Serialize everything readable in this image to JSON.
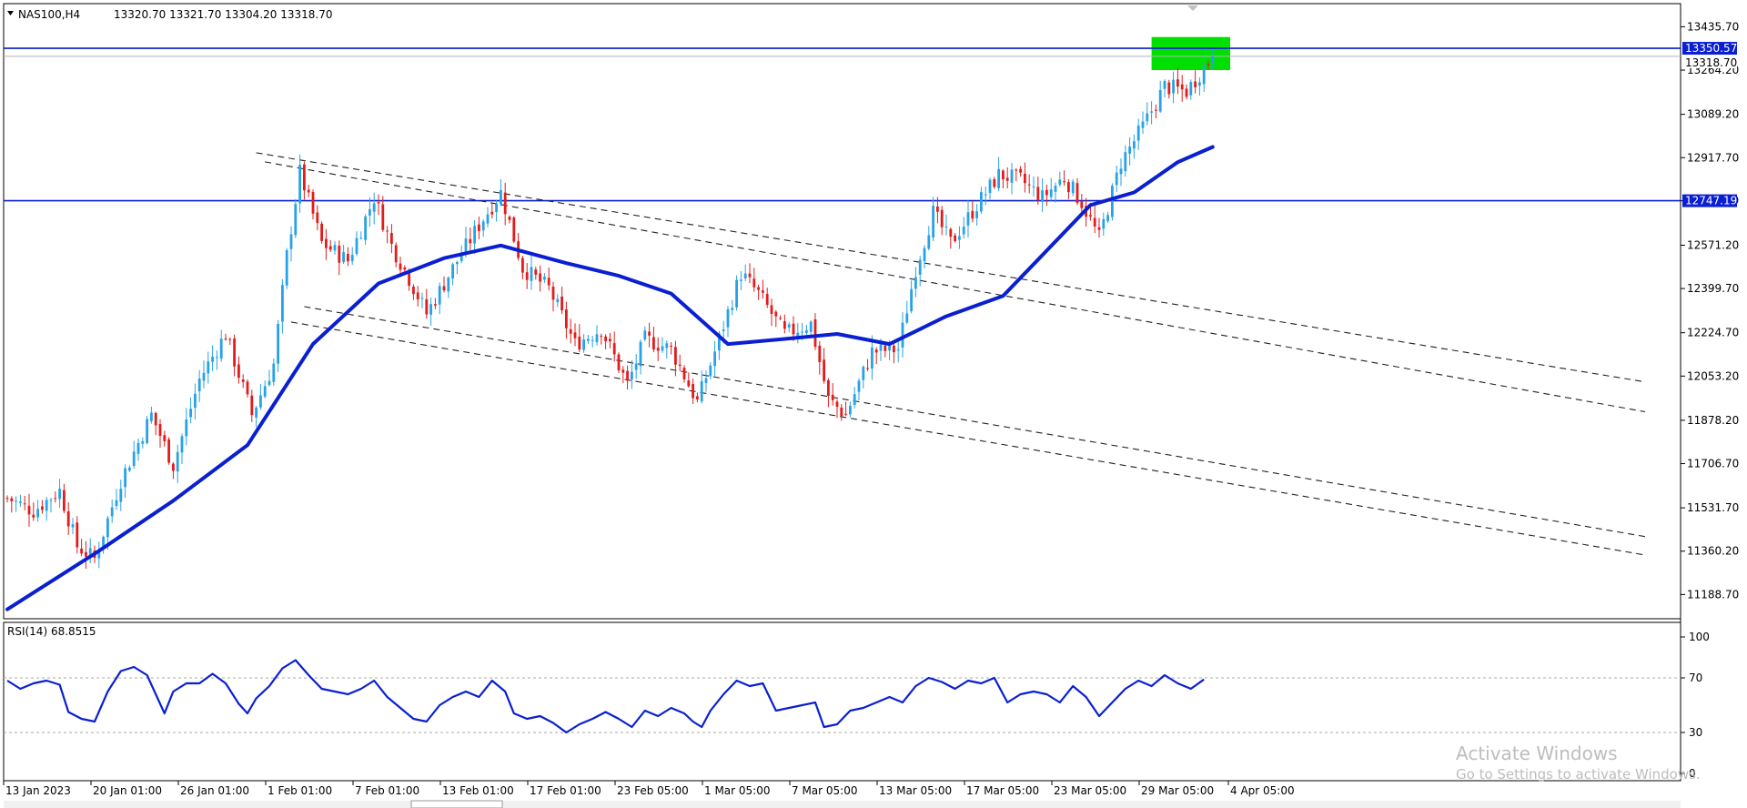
{
  "window": {
    "symbol_label": "NAS100,H4",
    "ohlc": "13320.70 13321.70 13304.20 13318.70",
    "watermark_title": "Activate Windows",
    "watermark_sub": "Go to Settings to activate Windows."
  },
  "colors": {
    "bull": "#27a2e6",
    "bear": "#e31b1b",
    "ma": "#0a1fd1",
    "hline": "#0a1fd1",
    "zone": "#00e000",
    "grid": "#c8c8c8",
    "frame": "#000000"
  },
  "chart_data": [
    {
      "type": "candlestick",
      "title": "NAS100,H4",
      "ylim": [
        11100,
        13520
      ],
      "y_ticks": [
        13435.7,
        13264.2,
        13089.2,
        12917.7,
        12747.19,
        12571.2,
        12399.7,
        12224.7,
        12053.2,
        11878.2,
        11706.7,
        11531.7,
        11360.2,
        11188.7
      ],
      "y_tick_labels": [
        "13435.70",
        "13264.20",
        "13089.20",
        "12917.70",
        "12747.19",
        "12571.20",
        "12399.70",
        "12224.70",
        "12053.20",
        "11878.20",
        "11706.70",
        "11531.70",
        "11360.20",
        "11188.70"
      ],
      "x_tick_labels": [
        "13 Jan 2023",
        "20 Jan 01:00",
        "26 Jan 01:00",
        "1 Feb 01:00",
        "7 Feb 01:00",
        "13 Feb 01:00",
        "17 Feb 01:00",
        "23 Feb 05:00",
        "1 Mar 05:00",
        "7 Mar 05:00",
        "13 Mar 05:00",
        "17 Mar 05:00",
        "23 Mar 05:00",
        "29 Mar 05:00",
        "4 Apr 05:00"
      ],
      "horizontal_levels": [
        {
          "value": 13350.57,
          "label": "13350.57"
        },
        {
          "value": 12747.19,
          "label": "12747.19"
        }
      ],
      "current_price": {
        "value": 13318.7,
        "label": "13318.70"
      },
      "resistance_zone": {
        "from": 13264.2,
        "to": 13395.0
      },
      "anchors": [
        {
          "x": 0,
          "v": 11570
        },
        {
          "x": 6,
          "v": 11520
        },
        {
          "x": 12,
          "v": 11600
        },
        {
          "x": 16,
          "v": 11380
        },
        {
          "x": 20,
          "v": 11330
        },
        {
          "x": 26,
          "v": 11640
        },
        {
          "x": 33,
          "v": 11900
        },
        {
          "x": 38,
          "v": 11700
        },
        {
          "x": 44,
          "v": 12040
        },
        {
          "x": 50,
          "v": 12220
        },
        {
          "x": 56,
          "v": 11900
        },
        {
          "x": 61,
          "v": 12100
        },
        {
          "x": 64,
          "v": 12530
        },
        {
          "x": 67,
          "v": 12860
        },
        {
          "x": 72,
          "v": 12580
        },
        {
          "x": 78,
          "v": 12510
        },
        {
          "x": 84,
          "v": 12760
        },
        {
          "x": 88,
          "v": 12570
        },
        {
          "x": 92,
          "v": 12440
        },
        {
          "x": 96,
          "v": 12300
        },
        {
          "x": 102,
          "v": 12480
        },
        {
          "x": 108,
          "v": 12650
        },
        {
          "x": 113,
          "v": 12780
        },
        {
          "x": 118,
          "v": 12480
        },
        {
          "x": 124,
          "v": 12400
        },
        {
          "x": 130,
          "v": 12180
        },
        {
          "x": 136,
          "v": 12240
        },
        {
          "x": 142,
          "v": 12020
        },
        {
          "x": 146,
          "v": 12200
        },
        {
          "x": 152,
          "v": 12160
        },
        {
          "x": 158,
          "v": 11950
        },
        {
          "x": 162,
          "v": 12150
        },
        {
          "x": 168,
          "v": 12460
        },
        {
          "x": 172,
          "v": 12380
        },
        {
          "x": 178,
          "v": 12220
        },
        {
          "x": 184,
          "v": 12260
        },
        {
          "x": 188,
          "v": 11960
        },
        {
          "x": 192,
          "v": 11900
        },
        {
          "x": 198,
          "v": 12150
        },
        {
          "x": 204,
          "v": 12160
        },
        {
          "x": 208,
          "v": 12480
        },
        {
          "x": 212,
          "v": 12700
        },
        {
          "x": 216,
          "v": 12580
        },
        {
          "x": 222,
          "v": 12730
        },
        {
          "x": 227,
          "v": 12850
        },
        {
          "x": 232,
          "v": 12830
        },
        {
          "x": 237,
          "v": 12760
        },
        {
          "x": 242,
          "v": 12840
        },
        {
          "x": 246,
          "v": 12740
        },
        {
          "x": 250,
          "v": 12600
        },
        {
          "x": 255,
          "v": 12900
        },
        {
          "x": 260,
          "v": 13040
        },
        {
          "x": 265,
          "v": 13200
        },
        {
          "x": 270,
          "v": 13180
        },
        {
          "x": 276,
          "v": 13318.7
        }
      ],
      "moving_average": [
        {
          "x": 0,
          "v": 11130
        },
        {
          "x": 20,
          "v": 11350
        },
        {
          "x": 38,
          "v": 11560
        },
        {
          "x": 55,
          "v": 11780
        },
        {
          "x": 70,
          "v": 12180
        },
        {
          "x": 85,
          "v": 12420
        },
        {
          "x": 100,
          "v": 12520
        },
        {
          "x": 113,
          "v": 12570
        },
        {
          "x": 128,
          "v": 12500
        },
        {
          "x": 140,
          "v": 12450
        },
        {
          "x": 152,
          "v": 12380
        },
        {
          "x": 165,
          "v": 12180
        },
        {
          "x": 178,
          "v": 12200
        },
        {
          "x": 190,
          "v": 12220
        },
        {
          "x": 202,
          "v": 12180
        },
        {
          "x": 215,
          "v": 12290
        },
        {
          "x": 228,
          "v": 12370
        },
        {
          "x": 238,
          "v": 12550
        },
        {
          "x": 248,
          "v": 12730
        },
        {
          "x": 258,
          "v": 12780
        },
        {
          "x": 268,
          "v": 12900
        },
        {
          "x": 276,
          "v": 12960
        }
      ],
      "trend_lines": [
        {
          "x1": 57,
          "v1": 12937,
          "x2": 375,
          "v2": 12030
        },
        {
          "x1": 59,
          "v1": 12901,
          "x2": 375,
          "v2": 11912
        },
        {
          "x1": 65,
          "v1": 12267,
          "x2": 375,
          "v2": 11345
        },
        {
          "x1": 68,
          "v1": 12328,
          "x2": 375,
          "v2": 11418
        }
      ]
    },
    {
      "type": "line",
      "title": "RSI(14) 68.8515",
      "ylim": [
        0,
        100
      ],
      "y_ticks": [
        100,
        70,
        30,
        0
      ],
      "y_tick_labels": [
        "100",
        "70",
        "30",
        "0"
      ],
      "levels": [
        70,
        30
      ],
      "points": [
        {
          "x": 0,
          "v": 68
        },
        {
          "x": 3,
          "v": 62
        },
        {
          "x": 6,
          "v": 66
        },
        {
          "x": 9,
          "v": 68
        },
        {
          "x": 12,
          "v": 65
        },
        {
          "x": 14,
          "v": 45
        },
        {
          "x": 17,
          "v": 40
        },
        {
          "x": 20,
          "v": 38
        },
        {
          "x": 23,
          "v": 60
        },
        {
          "x": 26,
          "v": 75
        },
        {
          "x": 29,
          "v": 78
        },
        {
          "x": 32,
          "v": 72
        },
        {
          "x": 34,
          "v": 58
        },
        {
          "x": 36,
          "v": 44
        },
        {
          "x": 38,
          "v": 60
        },
        {
          "x": 41,
          "v": 66
        },
        {
          "x": 44,
          "v": 66
        },
        {
          "x": 47,
          "v": 73
        },
        {
          "x": 50,
          "v": 66
        },
        {
          "x": 53,
          "v": 51
        },
        {
          "x": 55,
          "v": 44
        },
        {
          "x": 57,
          "v": 55
        },
        {
          "x": 60,
          "v": 64
        },
        {
          "x": 63,
          "v": 77
        },
        {
          "x": 66,
          "v": 83
        },
        {
          "x": 69,
          "v": 72
        },
        {
          "x": 72,
          "v": 62
        },
        {
          "x": 75,
          "v": 60
        },
        {
          "x": 78,
          "v": 58
        },
        {
          "x": 81,
          "v": 62
        },
        {
          "x": 84,
          "v": 68
        },
        {
          "x": 87,
          "v": 56
        },
        {
          "x": 90,
          "v": 48
        },
        {
          "x": 93,
          "v": 40
        },
        {
          "x": 96,
          "v": 38
        },
        {
          "x": 99,
          "v": 50
        },
        {
          "x": 102,
          "v": 56
        },
        {
          "x": 105,
          "v": 60
        },
        {
          "x": 108,
          "v": 56
        },
        {
          "x": 111,
          "v": 68
        },
        {
          "x": 114,
          "v": 60
        },
        {
          "x": 116,
          "v": 44
        },
        {
          "x": 119,
          "v": 40
        },
        {
          "x": 122,
          "v": 42
        },
        {
          "x": 125,
          "v": 37
        },
        {
          "x": 128,
          "v": 30
        },
        {
          "x": 131,
          "v": 36
        },
        {
          "x": 134,
          "v": 40
        },
        {
          "x": 137,
          "v": 45
        },
        {
          "x": 140,
          "v": 40
        },
        {
          "x": 143,
          "v": 34
        },
        {
          "x": 146,
          "v": 46
        },
        {
          "x": 149,
          "v": 42
        },
        {
          "x": 152,
          "v": 48
        },
        {
          "x": 155,
          "v": 44
        },
        {
          "x": 157,
          "v": 38
        },
        {
          "x": 159,
          "v": 34
        },
        {
          "x": 161,
          "v": 46
        },
        {
          "x": 164,
          "v": 58
        },
        {
          "x": 167,
          "v": 68
        },
        {
          "x": 170,
          "v": 64
        },
        {
          "x": 173,
          "v": 66
        },
        {
          "x": 176,
          "v": 46
        },
        {
          "x": 179,
          "v": 48
        },
        {
          "x": 182,
          "v": 50
        },
        {
          "x": 185,
          "v": 52
        },
        {
          "x": 187,
          "v": 34
        },
        {
          "x": 190,
          "v": 36
        },
        {
          "x": 193,
          "v": 46
        },
        {
          "x": 196,
          "v": 48
        },
        {
          "x": 199,
          "v": 52
        },
        {
          "x": 202,
          "v": 56
        },
        {
          "x": 205,
          "v": 52
        },
        {
          "x": 208,
          "v": 64
        },
        {
          "x": 211,
          "v": 70
        },
        {
          "x": 214,
          "v": 67
        },
        {
          "x": 217,
          "v": 62
        },
        {
          "x": 220,
          "v": 68
        },
        {
          "x": 223,
          "v": 66
        },
        {
          "x": 226,
          "v": 70
        },
        {
          "x": 229,
          "v": 52
        },
        {
          "x": 232,
          "v": 58
        },
        {
          "x": 235,
          "v": 60
        },
        {
          "x": 238,
          "v": 58
        },
        {
          "x": 241,
          "v": 52
        },
        {
          "x": 244,
          "v": 64
        },
        {
          "x": 247,
          "v": 56
        },
        {
          "x": 250,
          "v": 42
        },
        {
          "x": 253,
          "v": 52
        },
        {
          "x": 256,
          "v": 62
        },
        {
          "x": 259,
          "v": 68
        },
        {
          "x": 262,
          "v": 64
        },
        {
          "x": 265,
          "v": 72
        },
        {
          "x": 268,
          "v": 66
        },
        {
          "x": 271,
          "v": 62
        },
        {
          "x": 274,
          "v": 68.85
        }
      ]
    }
  ]
}
